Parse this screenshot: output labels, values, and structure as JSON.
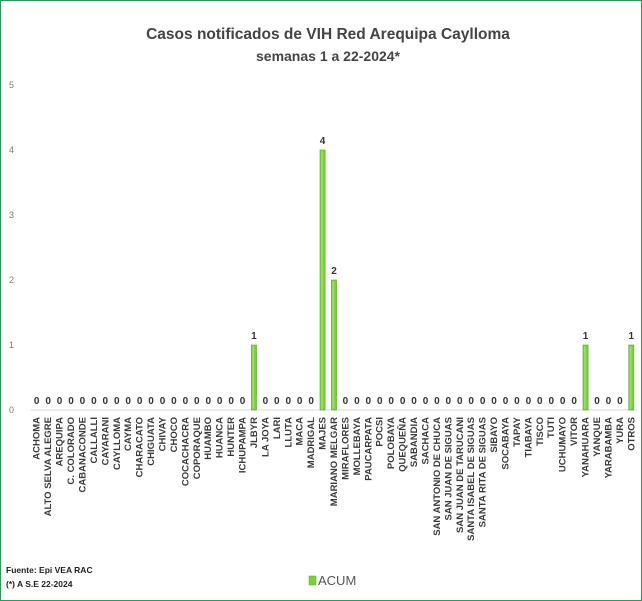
{
  "chart_data": {
    "type": "bar",
    "title": "Casos notificados de VIH Red Arequipa Caylloma",
    "subtitle": "semanas 1 a 22-2024*",
    "xlabel": "",
    "ylabel": "",
    "ylim": [
      0,
      5
    ],
    "yticks": [
      0,
      1,
      2,
      3,
      4,
      5
    ],
    "grid": false,
    "legend_position": "bottom",
    "bar_color": "#7ad13a",
    "categories": [
      "ACHOMA",
      "ALTO SELVA ALEGRE",
      "AREQUIPA",
      "C. COLORADO",
      "CABANACONDE",
      "CALLALLI",
      "CAYARANI",
      "CAYLLOMA",
      "CAYMA",
      "CHARACATO",
      "CHIGUATA",
      "CHIVAY",
      "CHOCO",
      "COCACHACRA",
      "COPORAQUE",
      "HUAMBO",
      "HUANCA",
      "HUNTER",
      "ICHUPAMPA",
      "JLBYR",
      "LA JOYA",
      "LARI",
      "LLUTA",
      "MACA",
      "MADRIGAL",
      "MAJES",
      "MARIANO MELGAR",
      "MIRAFLORES",
      "MOLLEBAYA",
      "PAUCARPATA",
      "POCSI",
      "POLOBAYA",
      "QUEQUEÑA",
      "SABANDIA",
      "SACHACA",
      "SAN ANTONIO DE CHUCA",
      "SAN JUAN DE SIGUAS",
      "SAN JUAN DE TARUCANI",
      "SANTA ISABEL DE SIGUAS",
      "SANTA RITA DE SIGUAS",
      "SIBAYO",
      "SOCABAYA",
      "TAPAY",
      "TIABAYA",
      "TISCO",
      "TUTI",
      "UCHUMAYO",
      "VITOR",
      "YANAHUARA",
      "YANQUE",
      "YARABAMBA",
      "YURA",
      "OTROS"
    ],
    "series": [
      {
        "name": "ACUM",
        "values": [
          0,
          0,
          0,
          0,
          0,
          0,
          0,
          0,
          0,
          0,
          0,
          0,
          0,
          0,
          0,
          0,
          0,
          0,
          0,
          1,
          0,
          0,
          0,
          0,
          0,
          4,
          2,
          0,
          0,
          0,
          0,
          0,
          0,
          0,
          0,
          0,
          0,
          0,
          0,
          0,
          0,
          0,
          0,
          0,
          0,
          0,
          0,
          0,
          1,
          0,
          0,
          0,
          1
        ]
      }
    ]
  },
  "footer": {
    "source": "Fuente: Epi VEA RAC",
    "note": "(*) A S.E 22-2024"
  }
}
